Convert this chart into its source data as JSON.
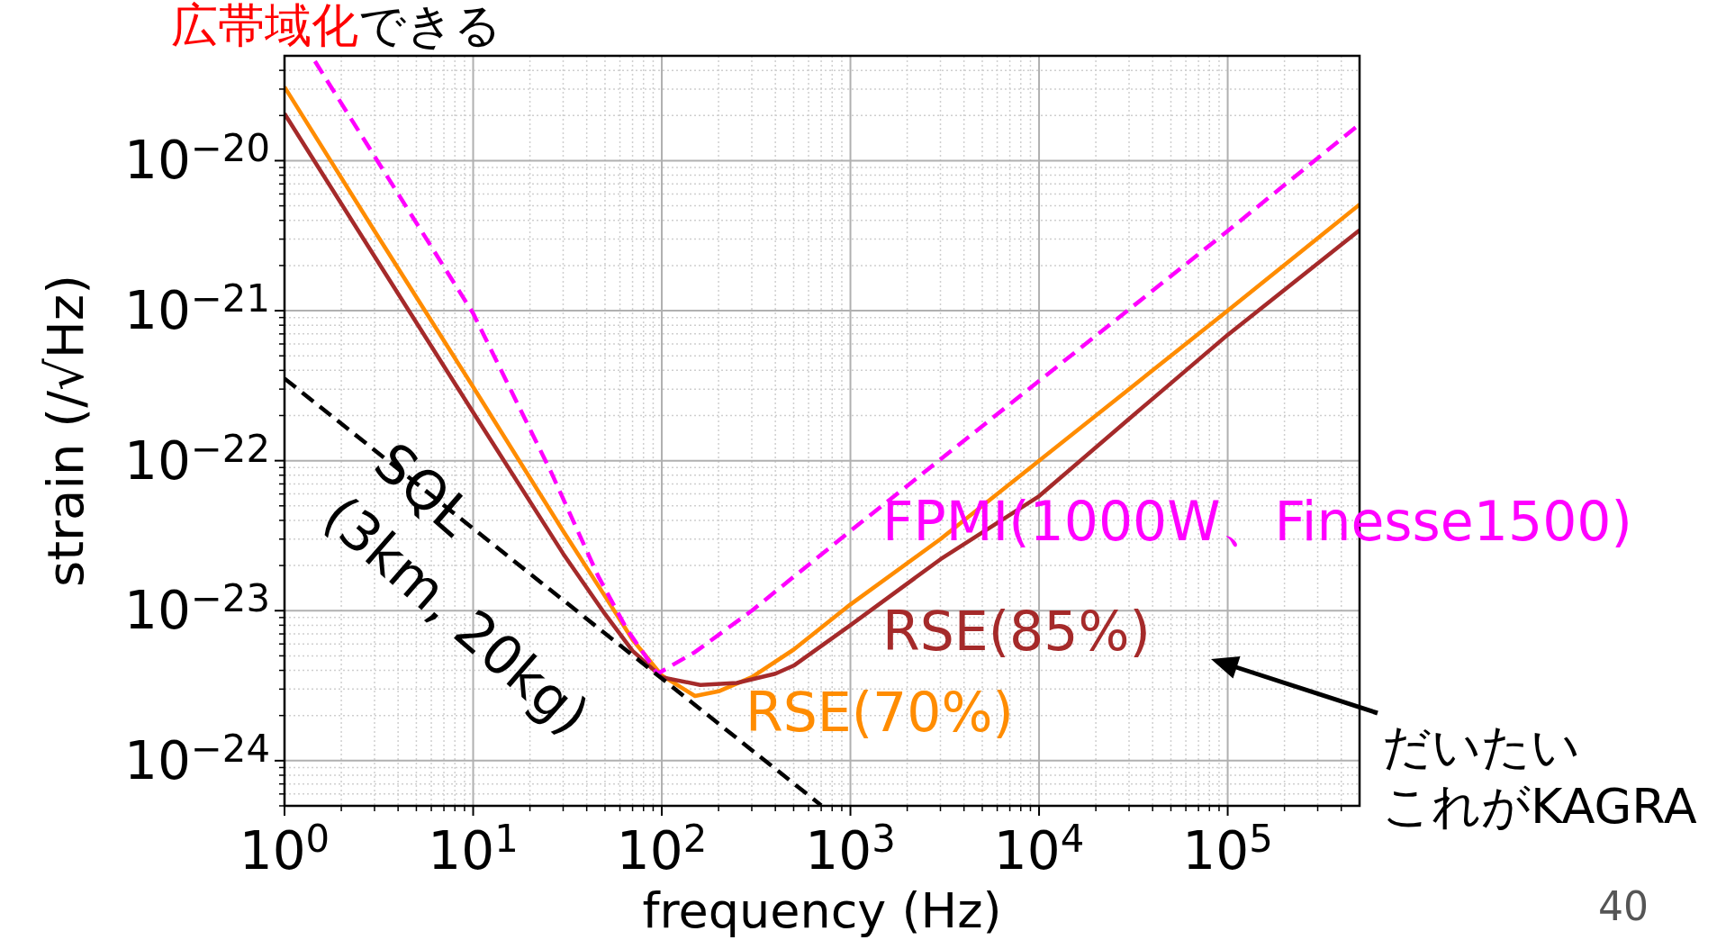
{
  "chart_data": {
    "type": "line",
    "xlabel": "frequency (Hz)",
    "ylabel": "strain (/√Hz)",
    "log": "xy",
    "grid": true,
    "marker": "none",
    "xlim": [
      1,
      500000
    ],
    "ylim": [
      5e-25,
      5e-20
    ],
    "xticks": [
      {
        "value": 1,
        "label": "10$^{0}$"
      },
      {
        "value": 10,
        "label": "10$^{1}$"
      },
      {
        "value": 100,
        "label": "10$^{2}$"
      },
      {
        "value": 1000,
        "label": "10$^{3}$"
      },
      {
        "value": 10000,
        "label": "10$^{4}$"
      },
      {
        "value": 100000,
        "label": "10$^{5}$"
      }
    ],
    "yticks": [
      {
        "value": 1e-24,
        "label": "10$^{−24}$"
      },
      {
        "value": 1e-23,
        "label": "10$^{−23}$"
      },
      {
        "value": 1e-22,
        "label": "10$^{−22}$"
      },
      {
        "value": 1e-21,
        "label": "10$^{−21}$"
      },
      {
        "value": 1e-20,
        "label": "10$^{−20}$"
      }
    ],
    "series": [
      {
        "name": "RSE(70%)",
        "color": "#ff8c00",
        "line_style": "solid",
        "x": [
          1,
          3,
          10,
          30,
          50,
          70,
          100,
          150,
          200,
          300,
          500,
          1000,
          3000,
          10000,
          30000,
          100000,
          500000
        ],
        "values": [
          3.1e-20,
          3.4e-21,
          3.1e-22,
          3.4e-23,
          1.25e-23,
          6.4e-24,
          3.7e-24,
          2.7e-24,
          2.9e-24,
          3.6e-24,
          5.5e-24,
          1.1e-23,
          3e-23,
          1e-22,
          3e-22,
          1e-21,
          5.1e-21
        ]
      },
      {
        "name": "RSE(85%)",
        "color": "#a52a2a",
        "line_style": "solid",
        "x": [
          1,
          3,
          10,
          30,
          50,
          70,
          100,
          160,
          250,
          400,
          500,
          1000,
          3000,
          10000,
          30000,
          100000,
          500000
        ],
        "values": [
          2.06e-20,
          2.3e-21,
          2.1e-22,
          2.4e-23,
          9.5e-24,
          5.4e-24,
          3.6e-24,
          3.2e-24,
          3.3e-24,
          3.8e-24,
          4.3e-24,
          8e-24,
          2.2e-23,
          5.8e-23,
          1.9e-22,
          6.9e-22,
          3.44e-21
        ]
      },
      {
        "name": "FPMI(1000W、Finesse1500)",
        "color": "#ff00ff",
        "line_style": "dashed",
        "x": [
          1.45,
          3,
          10,
          26,
          46,
          65,
          95,
          150,
          300,
          1000,
          10000,
          100000,
          500000
        ],
        "values": [
          4.6e-20,
          1.07e-20,
          9.6e-22,
          8.3e-23,
          1.7e-23,
          7.6e-24,
          3.8e-24,
          5.3e-24,
          1e-23,
          3.4e-23,
          3.4e-22,
          3.4e-21,
          1.75e-20
        ]
      },
      {
        "name": "SQL (3km, 20kg)",
        "color": "#000000",
        "line_style": "dashed",
        "x": [
          1,
          10,
          100,
          700
        ],
        "values": [
          3.53e-22,
          3.53e-23,
          3.53e-24,
          5.04e-25
        ]
      }
    ],
    "annotations": [
      "広帯域化",
      "できる",
      "だいたい",
      "これがKAGRA",
      "40"
    ]
  }
}
